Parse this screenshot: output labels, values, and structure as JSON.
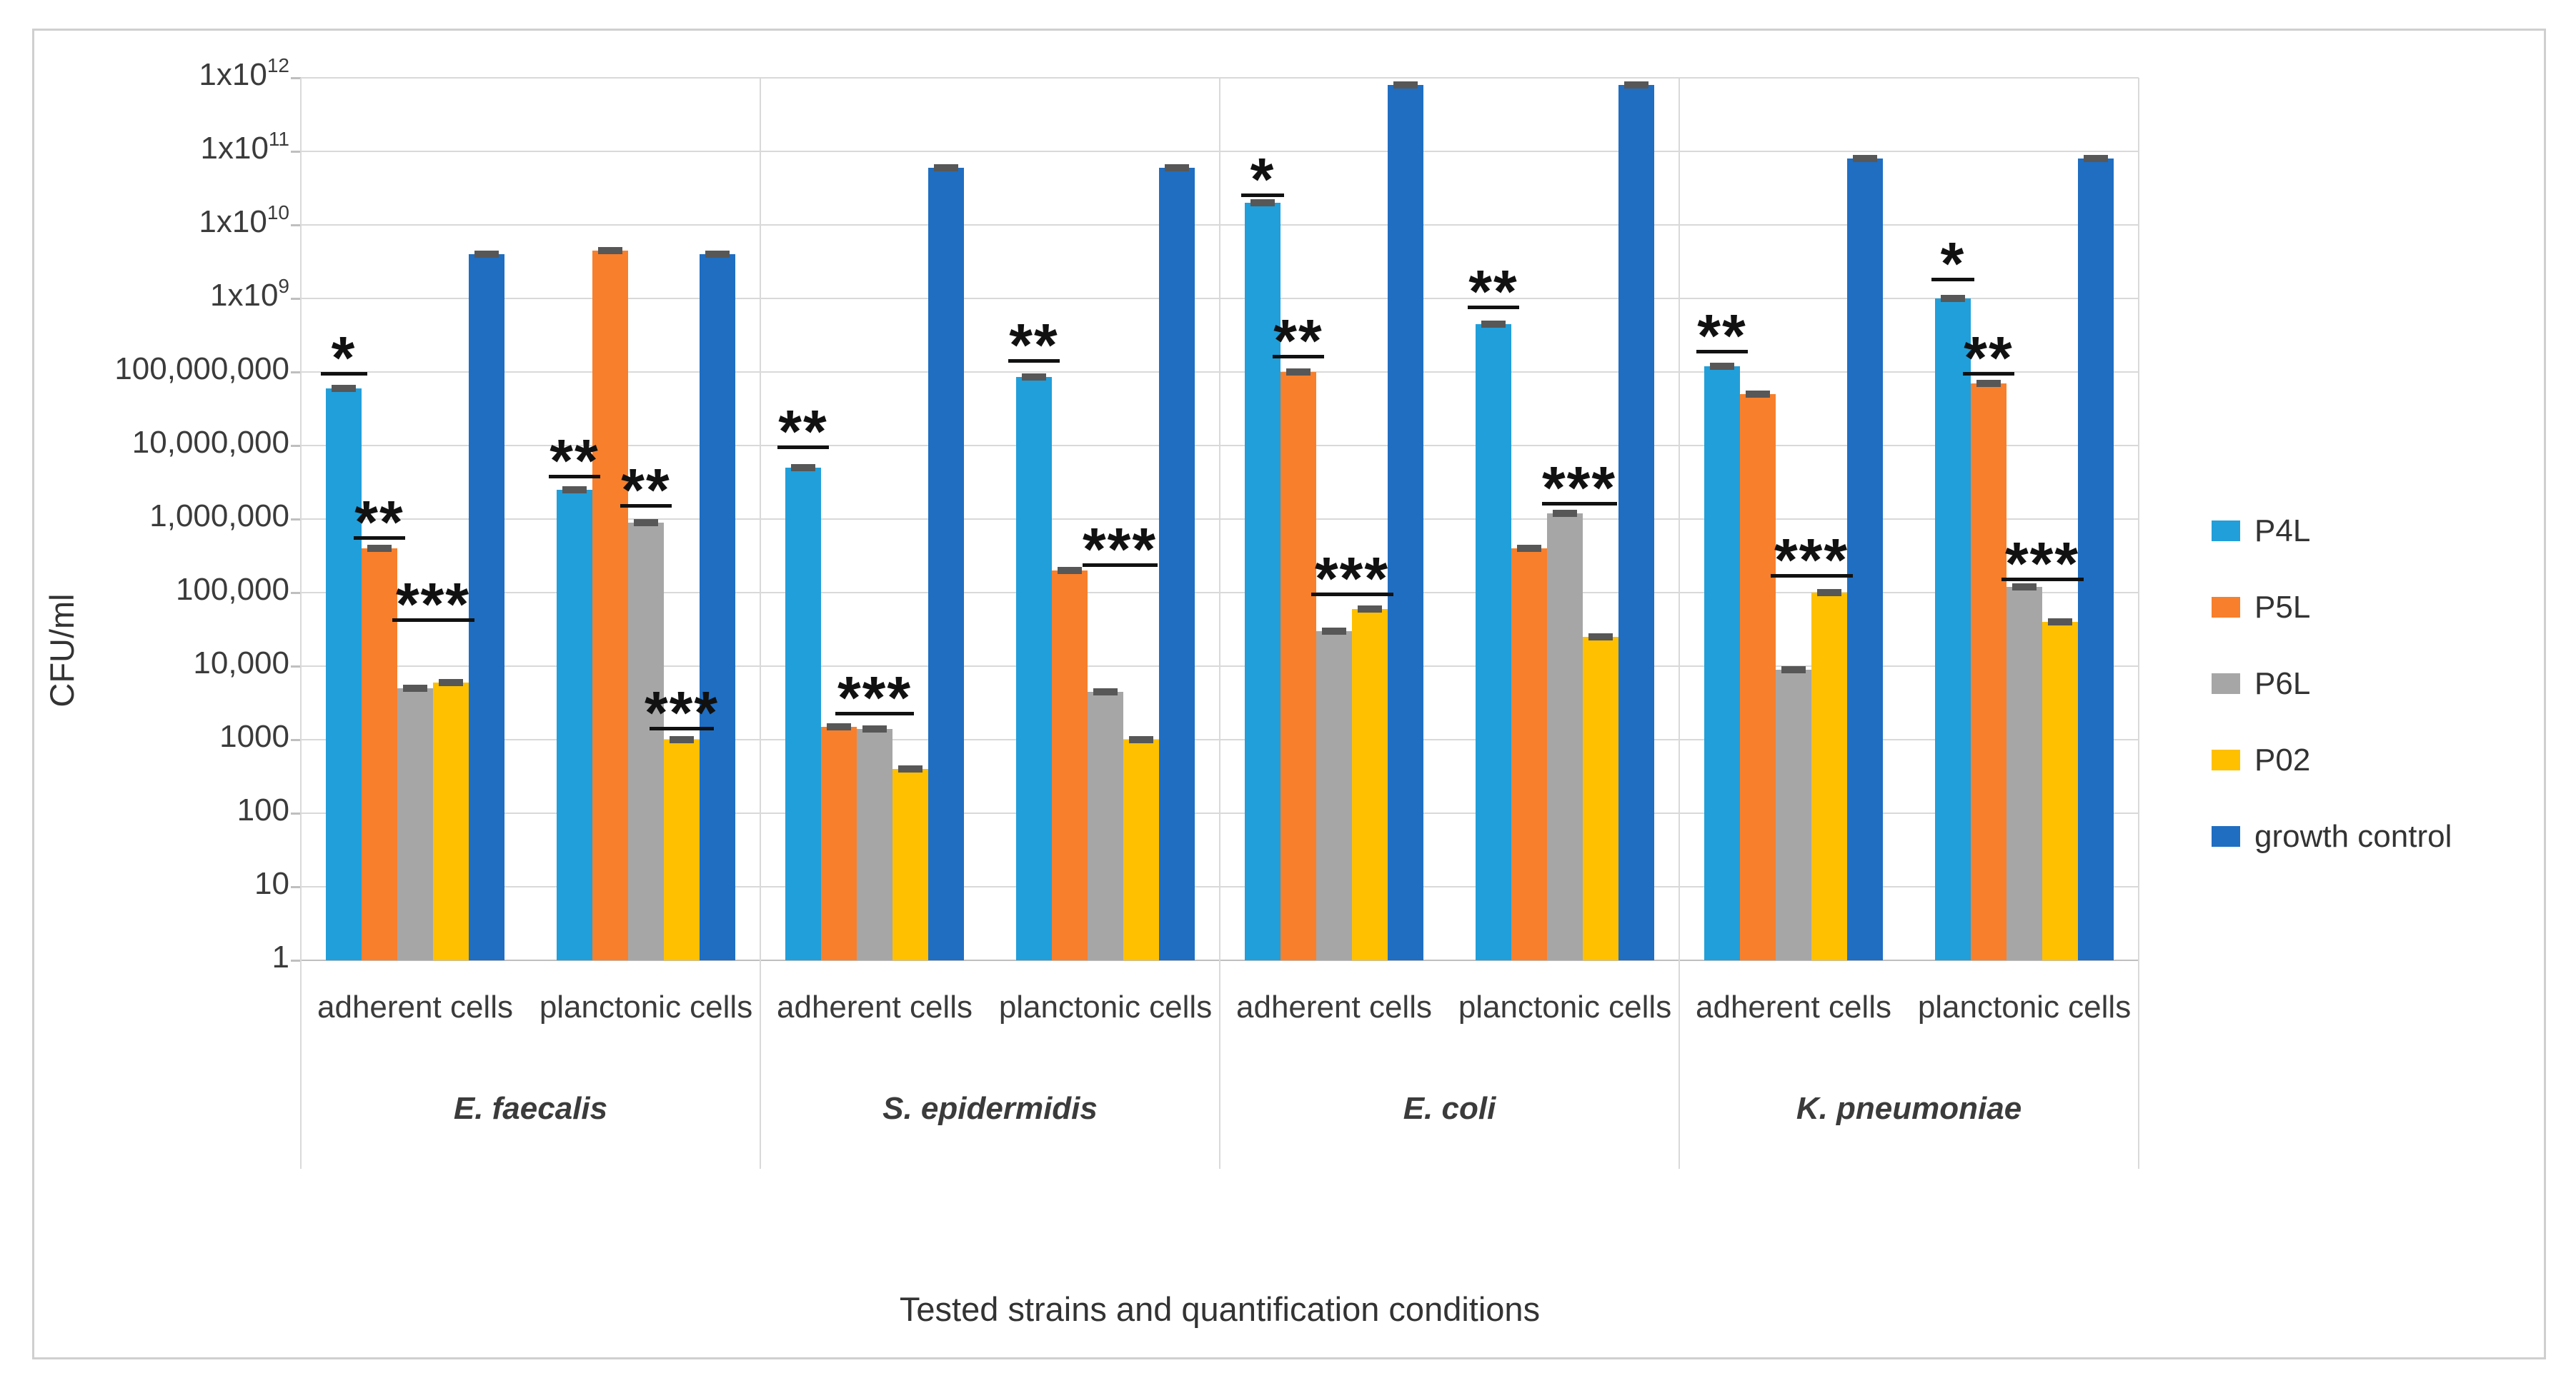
{
  "chart_data": {
    "type": "bar",
    "y_scale": "log10",
    "ylim": [
      1,
      1000000000000.0
    ],
    "grid": true,
    "ylabel": "CFU/ml",
    "xlabel": "Tested strains and quantification conditions",
    "legend_position": "right",
    "y_tick_labels": [
      "1x10^12",
      "1x10^11",
      "1x10^10",
      "1x10^9",
      "100,000,000",
      "10,000,000",
      "1,000,000",
      "100,000",
      "10,000",
      "1000",
      "100",
      "10",
      "1"
    ],
    "series": [
      {
        "name": "P4L",
        "color": "#219FDA"
      },
      {
        "name": "P5L",
        "color": "#F87F2B"
      },
      {
        "name": "P6L",
        "color": "#A6A6A6"
      },
      {
        "name": "P02",
        "color": "#FFC000"
      },
      {
        "name": "growth control",
        "color": "#1F6EC2"
      }
    ],
    "error_cap_color": "#575757",
    "groups": [
      {
        "strain": "E. faecalis",
        "conditions": [
          {
            "label": "adherent cells",
            "values": [
              60000000.0,
              400000.0,
              5000.0,
              6000.0,
              4000000000.0
            ],
            "markers": [
              {
                "text": "*",
                "center": 0,
                "span": 1.1,
                "line_value": 100000000.0
              },
              {
                "text": "**",
                "center": 1,
                "span": 1.25,
                "line_value": 580000.0
              },
              {
                "text": "***",
                "center": 2.5,
                "span": 2.1,
                "line_value": 45000.0
              }
            ]
          },
          {
            "label": "planctonic cells",
            "values": [
              2500000.0,
              4500000000.0,
              900000.0,
              1000.0,
              4000000000.0
            ],
            "markers": [
              {
                "text": "**",
                "center": 0,
                "span": 1.25,
                "line_value": 4000000.0
              },
              {
                "text": "**",
                "center": 2,
                "span": 1.25,
                "line_value": 1600000.0
              },
              {
                "text": "***",
                "center": 3,
                "span": 1.6,
                "line_value": 1500.0
              }
            ]
          }
        ]
      },
      {
        "strain": "S. epidermidis",
        "conditions": [
          {
            "label": "adherent cells",
            "values": [
              5000000.0,
              1500.0,
              1400.0,
              400.0,
              60000000000.0
            ],
            "markers": [
              {
                "text": "**",
                "center": 0,
                "span": 1.25,
                "line_value": 10000000.0
              },
              {
                "text": "***",
                "center": 2,
                "span": 2.0,
                "line_value": 2400.0
              }
            ]
          },
          {
            "label": "planctonic cells",
            "values": [
              85000000.0,
              200000.0,
              4500.0,
              1000.0,
              60000000000.0
            ],
            "markers": [
              {
                "text": "**",
                "center": 0,
                "span": 1.25,
                "line_value": 150000000.0
              },
              {
                "text": "***",
                "center": 2.4,
                "span": 1.9,
                "line_value": 250000.0
              }
            ]
          }
        ]
      },
      {
        "strain": "E. coli",
        "conditions": [
          {
            "label": "adherent cells",
            "values": [
              20000000000.0,
              100000000.0,
              30000.0,
              60000.0,
              800000000000.0
            ],
            "markers": [
              {
                "text": "*",
                "center": 0,
                "span": 1.0,
                "line_value": 27000000000.0
              },
              {
                "text": "**",
                "center": 1,
                "span": 1.25,
                "line_value": 170000000.0
              },
              {
                "text": "***",
                "center": 2.5,
                "span": 2.1,
                "line_value": 100000.0
              }
            ]
          },
          {
            "label": "planctonic cells",
            "values": [
              450000000.0,
              400000.0,
              1200000.0,
              25000.0,
              800000000000.0
            ],
            "markers": [
              {
                "text": "**",
                "center": 0,
                "span": 1.25,
                "line_value": 800000000.0
              },
              {
                "text": "***",
                "center": 2.4,
                "span": 1.9,
                "line_value": 1700000.0
              }
            ]
          }
        ]
      },
      {
        "strain": "K. pneumoniae",
        "conditions": [
          {
            "label": "adherent cells",
            "values": [
              120000000.0,
              50000000.0,
              9000.0,
              100000.0,
              80000000000.0
            ],
            "markers": [
              {
                "text": "**",
                "center": 0,
                "span": 1.25,
                "line_value": 200000000.0
              },
              {
                "text": "***",
                "center": 2.5,
                "span": 2.1,
                "line_value": 180000.0
              }
            ]
          },
          {
            "label": "planctonic cells",
            "values": [
              1000000000.0,
              70000000.0,
              120000.0,
              40000.0,
              80000000000.0
            ],
            "markers": [
              {
                "text": "*",
                "center": 0,
                "span": 1.0,
                "line_value": 1900000000.0
              },
              {
                "text": "**",
                "center": 1,
                "span": 1.25,
                "line_value": 100000000.0
              },
              {
                "text": "***",
                "center": 2.5,
                "span": 2.1,
                "line_value": 160000.0
              }
            ]
          }
        ]
      }
    ]
  }
}
